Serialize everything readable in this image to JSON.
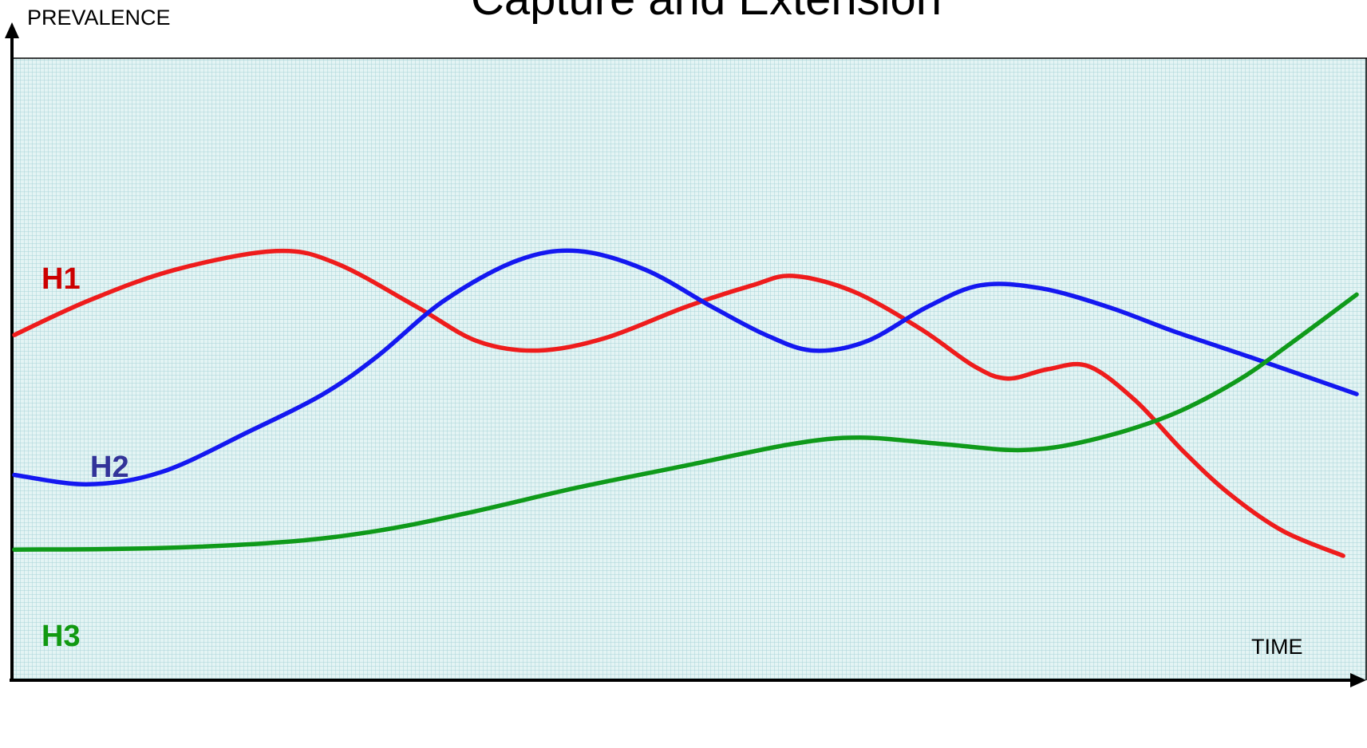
{
  "chart_data": {
    "type": "line",
    "title": "Capture and Extension",
    "xlabel": "TIME",
    "ylabel": "PREVALENCE",
    "grid": true,
    "colors": {
      "plot_background": "#e4f4f4",
      "grid": "#a9d3d8",
      "axis": "#000000"
    },
    "x_range": [
      0,
      1
    ],
    "y_range": [
      0,
      1
    ],
    "series": [
      {
        "name": "H1",
        "color": "#ee1c1c",
        "label_color": "#cc0000",
        "points": [
          [
            0.0,
            0.555
          ],
          [
            0.055,
            0.61
          ],
          [
            0.12,
            0.66
          ],
          [
            0.195,
            0.69
          ],
          [
            0.24,
            0.67
          ],
          [
            0.3,
            0.6
          ],
          [
            0.345,
            0.545
          ],
          [
            0.39,
            0.53
          ],
          [
            0.44,
            0.55
          ],
          [
            0.5,
            0.6
          ],
          [
            0.55,
            0.635
          ],
          [
            0.58,
            0.65
          ],
          [
            0.625,
            0.625
          ],
          [
            0.675,
            0.565
          ],
          [
            0.715,
            0.505
          ],
          [
            0.74,
            0.485
          ],
          [
            0.77,
            0.5
          ],
          [
            0.8,
            0.505
          ],
          [
            0.835,
            0.45
          ],
          [
            0.87,
            0.37
          ],
          [
            0.905,
            0.3
          ],
          [
            0.945,
            0.24
          ],
          [
            0.99,
            0.2
          ]
        ]
      },
      {
        "name": "H2",
        "color": "#1418f0",
        "label_color": "#333399",
        "points": [
          [
            0.0,
            0.33
          ],
          [
            0.055,
            0.315
          ],
          [
            0.11,
            0.335
          ],
          [
            0.175,
            0.4
          ],
          [
            0.23,
            0.46
          ],
          [
            0.27,
            0.52
          ],
          [
            0.32,
            0.61
          ],
          [
            0.375,
            0.675
          ],
          [
            0.42,
            0.69
          ],
          [
            0.47,
            0.66
          ],
          [
            0.52,
            0.6
          ],
          [
            0.56,
            0.555
          ],
          [
            0.595,
            0.53
          ],
          [
            0.635,
            0.545
          ],
          [
            0.68,
            0.6
          ],
          [
            0.72,
            0.635
          ],
          [
            0.765,
            0.63
          ],
          [
            0.815,
            0.6
          ],
          [
            0.865,
            0.56
          ],
          [
            0.92,
            0.52
          ],
          [
            1.0,
            0.46
          ]
        ]
      },
      {
        "name": "H3",
        "color": "#0f9a1a",
        "label_color": "#119911",
        "points": [
          [
            0.0,
            0.21
          ],
          [
            0.1,
            0.212
          ],
          [
            0.2,
            0.222
          ],
          [
            0.27,
            0.24
          ],
          [
            0.34,
            0.27
          ],
          [
            0.42,
            0.31
          ],
          [
            0.5,
            0.345
          ],
          [
            0.58,
            0.38
          ],
          [
            0.63,
            0.39
          ],
          [
            0.69,
            0.38
          ],
          [
            0.75,
            0.37
          ],
          [
            0.8,
            0.385
          ],
          [
            0.86,
            0.425
          ],
          [
            0.91,
            0.48
          ],
          [
            0.95,
            0.54
          ],
          [
            1.0,
            0.62
          ]
        ]
      }
    ]
  }
}
